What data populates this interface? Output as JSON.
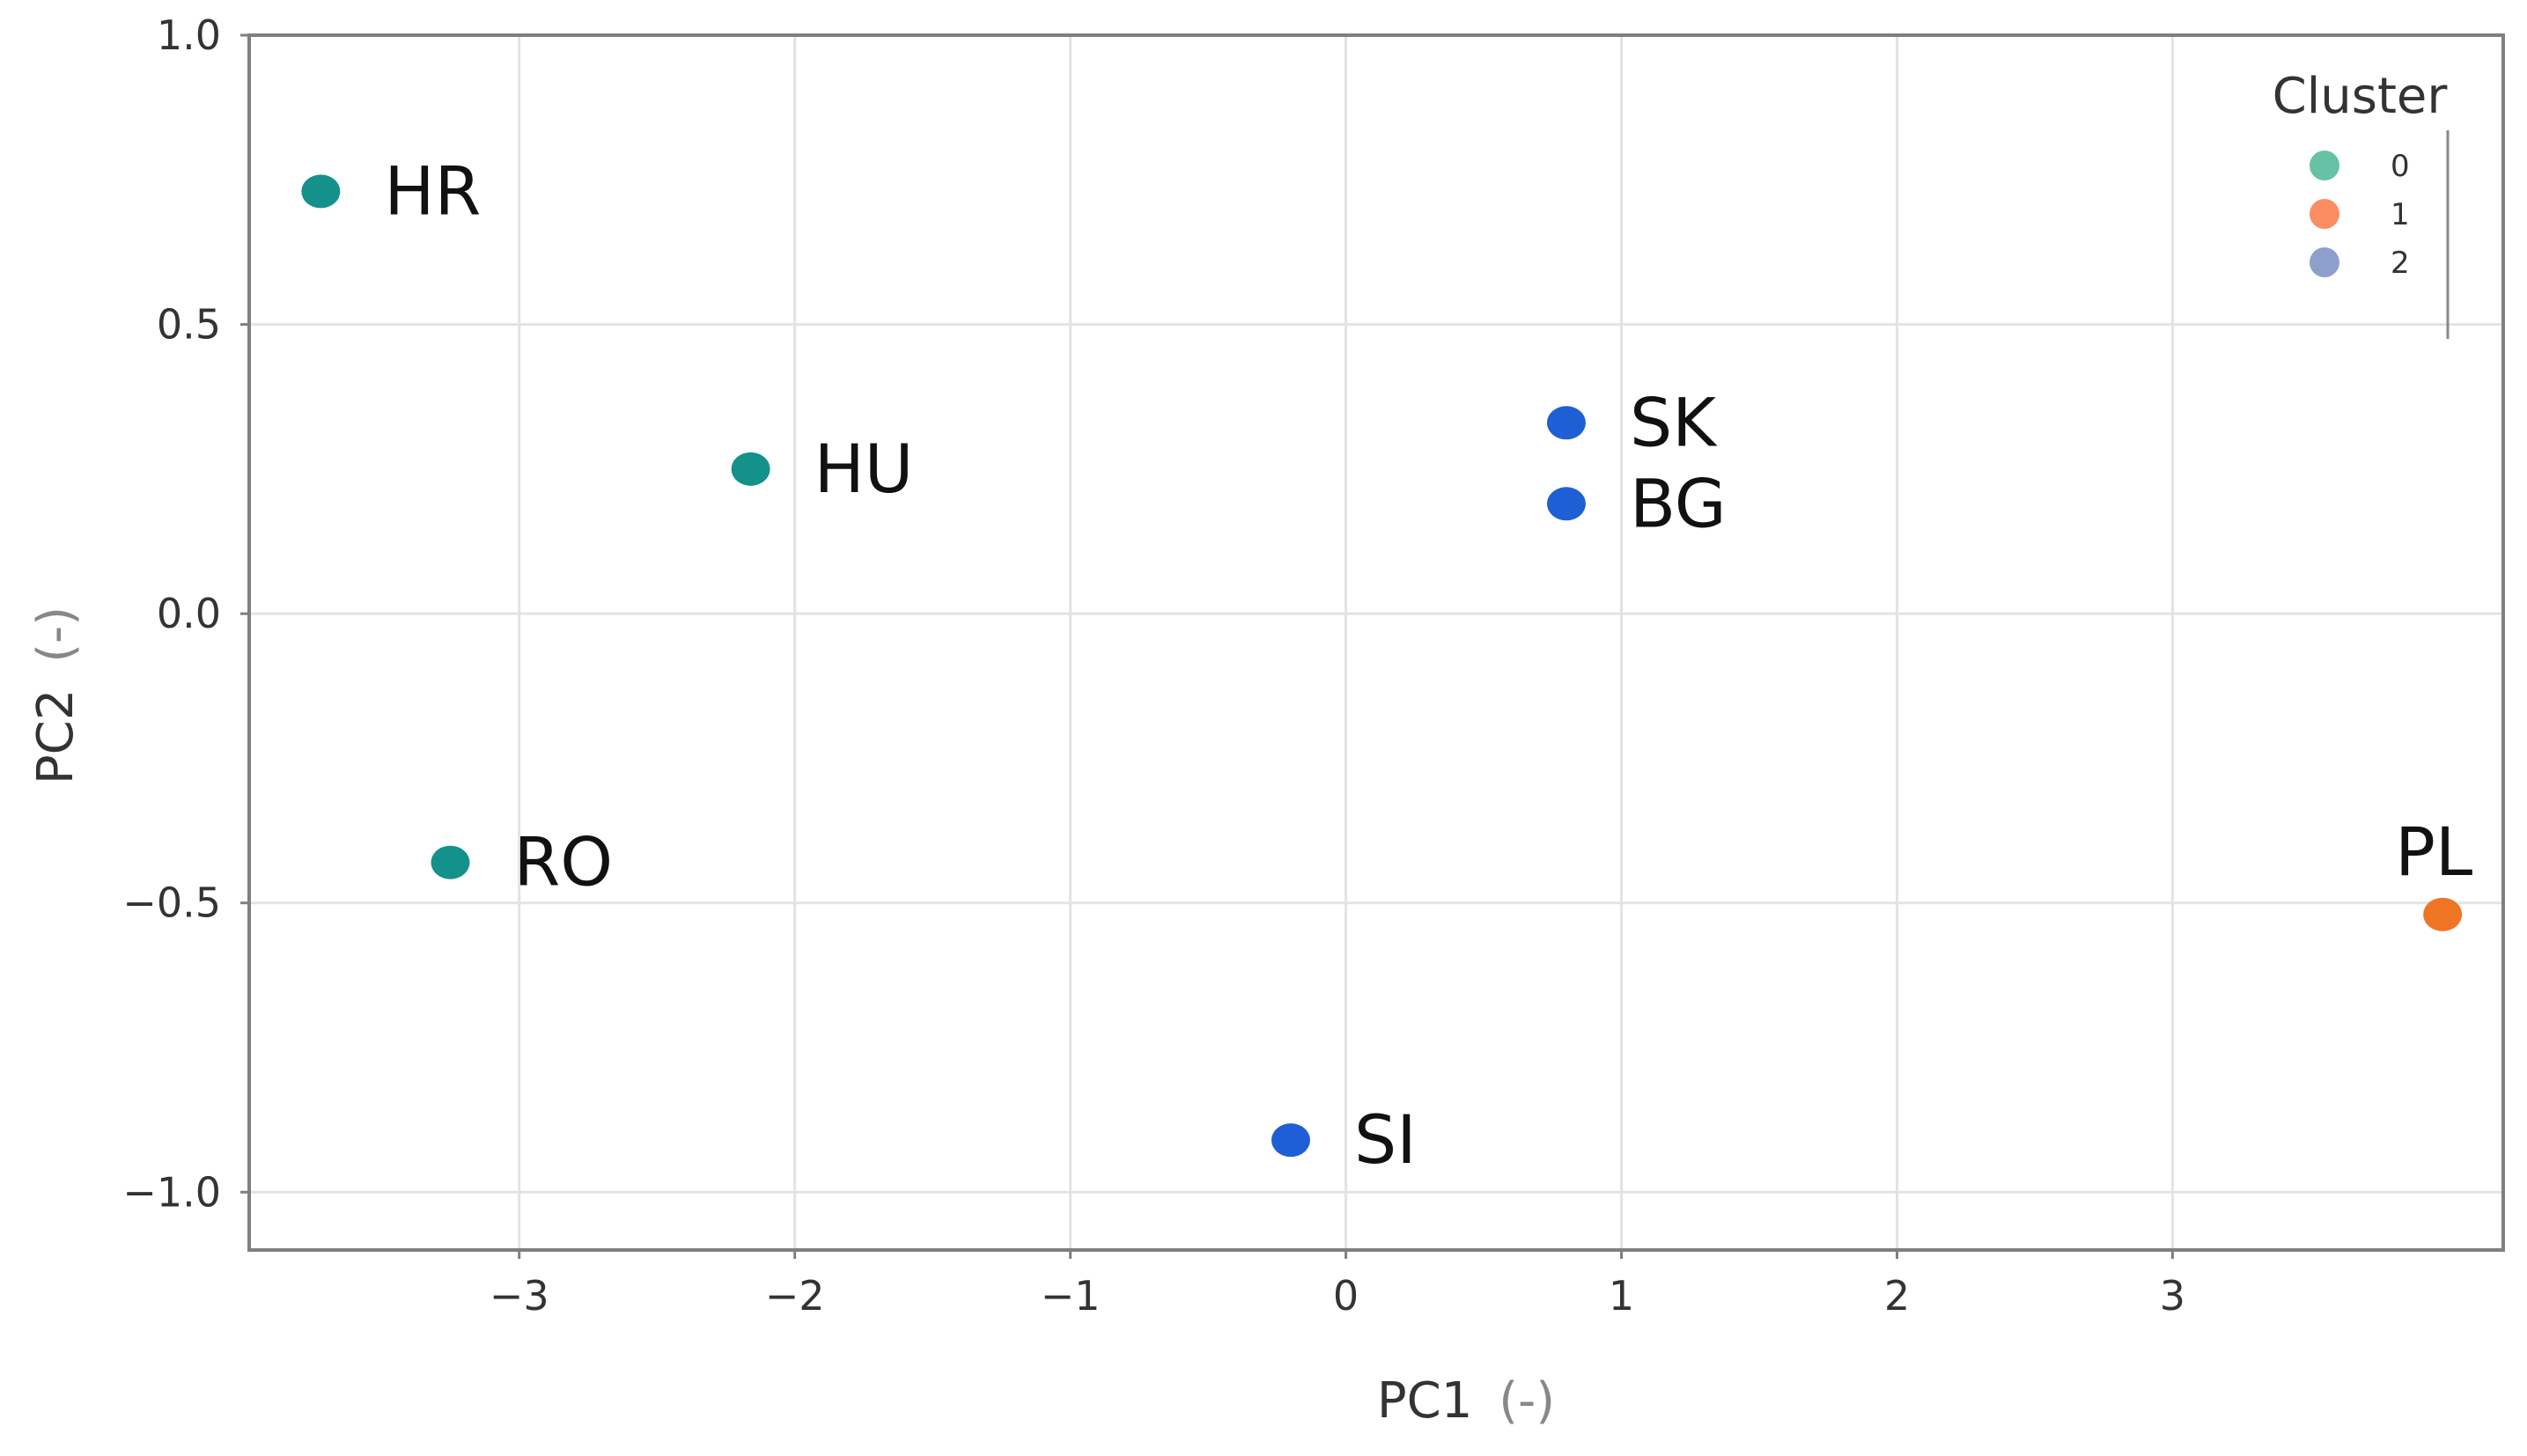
{
  "chart_data": {
    "type": "scatter",
    "title": "",
    "xlabel": "PC1",
    "xlabel_unit": "(-)",
    "ylabel": "PC2",
    "ylabel_unit": "(-)",
    "xlim": [
      -3.98,
      4.2
    ],
    "ylim": [
      -1.1,
      1.0
    ],
    "x_ticks": [
      -3,
      -2,
      -1,
      0,
      1,
      2,
      3
    ],
    "x_tick_labels": [
      "−3",
      "−2",
      "−1",
      "0",
      "1",
      "2",
      "3"
    ],
    "y_ticks": [
      1.0,
      0.5,
      0.0,
      -0.5,
      -1.0
    ],
    "y_tick_labels": [
      "1.0",
      "0.5",
      "0.0",
      "−0.5",
      "−1.0"
    ],
    "grid": true,
    "legend": {
      "title": "Cluster",
      "placement": "top-right",
      "entries": [
        {
          "label": "0",
          "color": "#66c2a5"
        },
        {
          "label": "1",
          "color": "#fc8d62"
        },
        {
          "label": "2",
          "color": "#8da0cb"
        }
      ]
    },
    "cluster_colors": {
      "0": "#14918a",
      "1": "#ef7423",
      "2": "#1f5fd6"
    },
    "points": [
      {
        "label": "HR",
        "x": -3.72,
        "y": 0.73,
        "cluster": 0
      },
      {
        "label": "HU",
        "x": -2.16,
        "y": 0.25,
        "cluster": 0
      },
      {
        "label": "RO",
        "x": -3.25,
        "y": -0.43,
        "cluster": 0
      },
      {
        "label": "SK",
        "x": 0.8,
        "y": 0.33,
        "cluster": 2
      },
      {
        "label": "BG",
        "x": 0.8,
        "y": 0.19,
        "cluster": 2
      },
      {
        "label": "SI",
        "x": -0.2,
        "y": -0.91,
        "cluster": 2
      },
      {
        "label": "PL",
        "x": 3.98,
        "y": -0.52,
        "cluster": 1
      }
    ]
  }
}
